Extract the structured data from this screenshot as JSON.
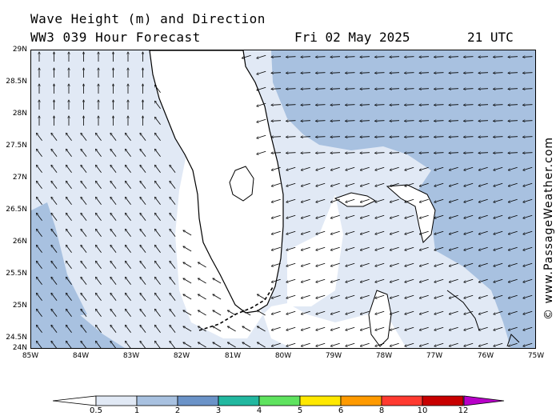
{
  "header": {
    "title": "Wave Height (m) and Direction",
    "model": "WW3 039 Hour Forecast",
    "date": "Fri 02 May 2025",
    "time": "21 UTC"
  },
  "credit": "© www.PassageWeather.com",
  "map": {
    "lon_range": [
      -85,
      -75
    ],
    "lat_range": [
      24,
      29
    ],
    "lat_labels": [
      "29N",
      "28.5N",
      "28N",
      "27.5N",
      "27N",
      "26.5N",
      "26N",
      "25.5N",
      "25N",
      "24.5N",
      "24N"
    ],
    "lon_labels": [
      "85W",
      "84W",
      "83W",
      "82W",
      "81W",
      "80W",
      "79W",
      "78W",
      "77W",
      "76W",
      "75W"
    ],
    "land_color": "#ffffff",
    "coast_color": "#000000",
    "dominant_direction_east": "waves travelling west (from east)",
    "dominant_direction_gulf": "waves travelling north-northwest"
  },
  "colorbar": {
    "labels": [
      "0.5",
      "1",
      "2",
      "3",
      "4",
      "5",
      "6",
      "8",
      "10",
      "12"
    ],
    "colors": [
      "#e1e9f5",
      "#a8c1e0",
      "#6b93c8",
      "#22b8a0",
      "#5fe35f",
      "#ffe800",
      "#ff9a00",
      "#ff3a30",
      "#c80000",
      "#b800c8"
    ],
    "low_color": "#ffffff"
  }
}
